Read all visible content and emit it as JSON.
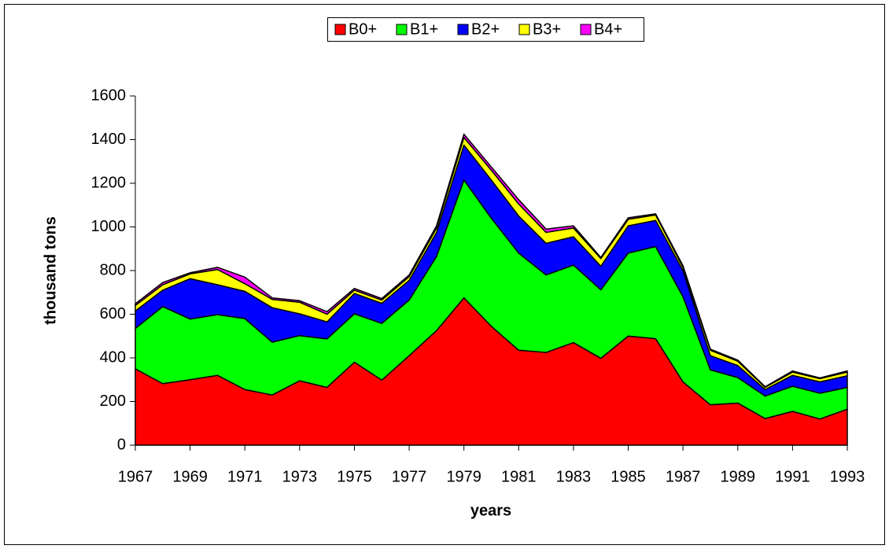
{
  "chart_data": {
    "type": "stacked_area",
    "x": [
      1967,
      1968,
      1969,
      1970,
      1971,
      1972,
      1973,
      1974,
      1975,
      1976,
      1977,
      1978,
      1979,
      1980,
      1981,
      1982,
      1983,
      1984,
      1985,
      1986,
      1987,
      1988,
      1989,
      1990,
      1991,
      1992,
      1993
    ],
    "series": [
      {
        "name": "B0+",
        "color": "#ff0000",
        "values": [
          350,
          282,
          300,
          320,
          255,
          230,
          295,
          265,
          380,
          298,
          410,
          525,
          675,
          545,
          435,
          425,
          470,
          398,
          500,
          488,
          290,
          185,
          193,
          122,
          155,
          120,
          165
        ]
      },
      {
        "name": "B1+",
        "color": "#00ff00",
        "values": [
          185,
          353,
          278,
          278,
          325,
          242,
          207,
          222,
          222,
          260,
          255,
          340,
          540,
          495,
          445,
          355,
          355,
          314,
          380,
          422,
          390,
          160,
          117,
          103,
          115,
          118,
          100
        ]
      },
      {
        "name": "B2+",
        "color": "#0000ff",
        "values": [
          80,
          75,
          185,
          137,
          125,
          158,
          100,
          78,
          93,
          92,
          90,
          110,
          160,
          175,
          170,
          145,
          130,
          108,
          125,
          120,
          120,
          65,
          55,
          30,
          50,
          52,
          53
        ]
      },
      {
        "name": "B3+",
        "color": "#ffff00",
        "values": [
          25,
          25,
          22,
          70,
          35,
          38,
          53,
          35,
          15,
          15,
          17,
          20,
          35,
          45,
          55,
          50,
          40,
          35,
          30,
          25,
          15,
          25,
          20,
          10,
          15,
          15,
          17
        ]
      },
      {
        "name": "B4+",
        "color": "#ff00ff",
        "values": [
          8,
          10,
          5,
          10,
          30,
          7,
          7,
          12,
          8,
          7,
          8,
          10,
          15,
          15,
          20,
          15,
          10,
          5,
          7,
          5,
          7,
          5,
          5,
          3,
          5,
          3,
          5
        ]
      }
    ],
    "xlabel": "years",
    "ylabel": "thousand tons",
    "xlim": [
      1967,
      1993
    ],
    "xticks": [
      1967,
      1969,
      1971,
      1973,
      1975,
      1977,
      1979,
      1981,
      1983,
      1985,
      1987,
      1989,
      1991,
      1993
    ],
    "ylim": [
      0,
      1600
    ],
    "yticks": [
      0,
      200,
      400,
      600,
      800,
      1000,
      1200,
      1400,
      1600
    ],
    "legend": "top"
  }
}
